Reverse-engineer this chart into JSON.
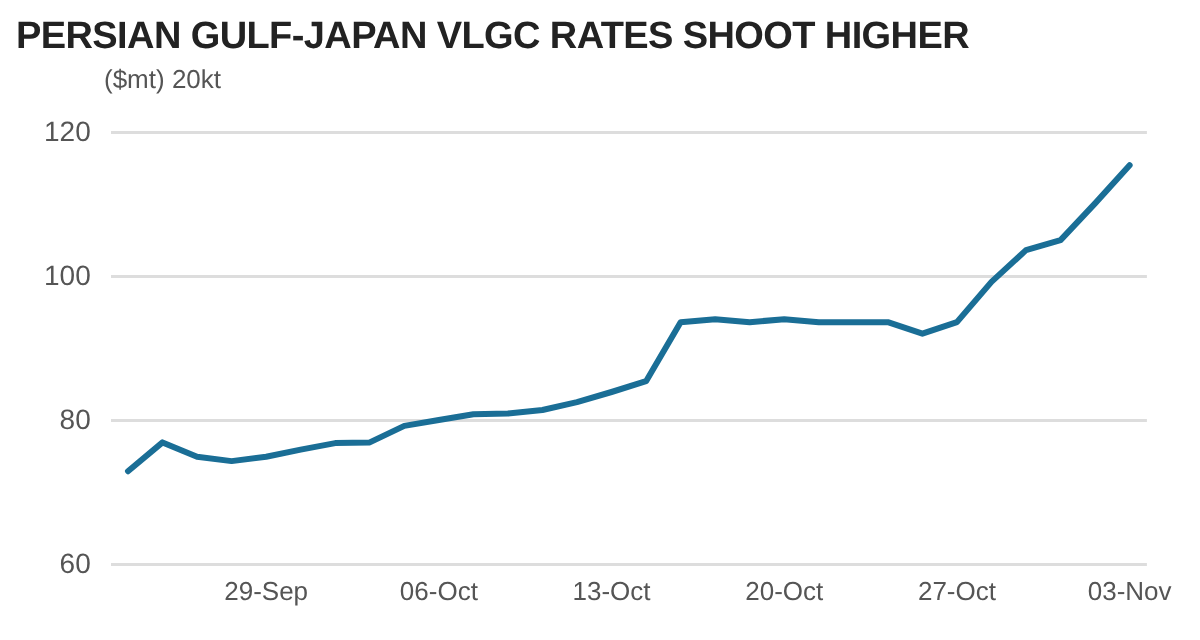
{
  "chart_data": {
    "type": "line",
    "title": "PERSIAN GULF-JAPAN VLGC RATES SHOOT HIGHER",
    "ylabel": "($mt) 20kt",
    "categories": [
      null,
      null,
      null,
      null,
      "29-Sep",
      null,
      null,
      null,
      null,
      "06-Oct",
      null,
      null,
      null,
      null,
      "13-Oct",
      null,
      null,
      null,
      null,
      "20-Oct",
      null,
      null,
      null,
      null,
      "27-Oct",
      null,
      null,
      null,
      null,
      "03-Nov"
    ],
    "series": [
      {
        "color": "#1a6e96",
        "values": [
          73,
          77,
          75,
          74.4,
          75,
          76,
          76.9,
          77,
          79.3,
          80.1,
          80.9,
          81,
          81.5,
          82.6,
          84,
          85.5,
          93.7,
          94.1,
          93.7,
          94.1,
          93.7,
          93.7,
          93.7,
          92.1,
          93.7,
          99.3,
          103.7,
          105.1,
          110.2,
          115.5
        ]
      }
    ],
    "ylim": [
      60,
      120
    ],
    "yticks": [
      60,
      80,
      100,
      120
    ],
    "grid": "y",
    "legend": false,
    "marker": "none",
    "line_style": "solid"
  }
}
